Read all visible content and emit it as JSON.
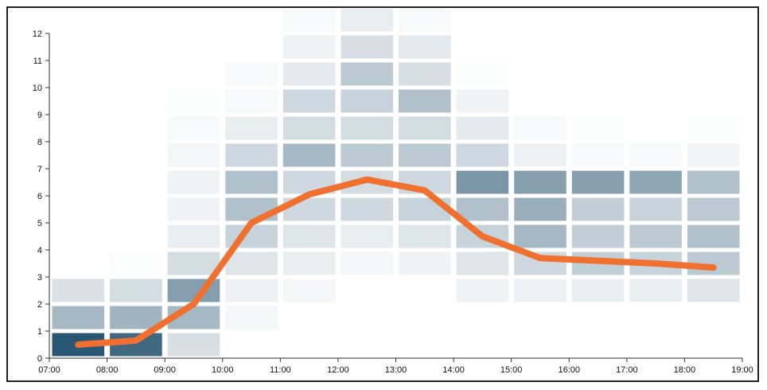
{
  "chart_data": {
    "type": "heatmap",
    "title": "",
    "xlabel": "",
    "ylabel": "",
    "x_tick_labels": [
      "07:00",
      "08:00",
      "09:00",
      "10:00",
      "11:00",
      "12:00",
      "13:00",
      "14:00",
      "15:00",
      "16:00",
      "17:00",
      "18:00",
      "19:00"
    ],
    "y_tick_labels": [
      "0",
      "1",
      "2",
      "3",
      "4",
      "5",
      "6",
      "7",
      "8",
      "9",
      "10",
      "11",
      "12"
    ],
    "xlim": [
      "07:00",
      "19:00"
    ],
    "ylim": [
      0,
      12
    ],
    "cell_color": "#1f4e6b",
    "line_color": "#f07030",
    "heatmap_columns": [
      {
        "start": "07:00",
        "end": "08:00",
        "intensities": [
          0.95,
          0.4,
          0.17,
          0.0,
          0.0,
          0.0,
          0.0,
          0.0,
          0.0,
          0.0,
          0.0,
          0.0
        ]
      },
      {
        "start": "08:00",
        "end": "09:00",
        "intensities": [
          0.85,
          0.42,
          0.2,
          0.02,
          0.0,
          0.0,
          0.0,
          0.0,
          0.0,
          0.0,
          0.0,
          0.0
        ]
      },
      {
        "start": "09:00",
        "end": "10:00",
        "intensities": [
          0.18,
          0.4,
          0.55,
          0.2,
          0.1,
          0.07,
          0.07,
          0.05,
          0.03,
          0.02,
          0.0,
          0.0
        ]
      },
      {
        "start": "10:00",
        "end": "11:00",
        "intensities": [
          0.0,
          0.05,
          0.08,
          0.15,
          0.25,
          0.35,
          0.35,
          0.22,
          0.1,
          0.04,
          0.03,
          0.0
        ]
      },
      {
        "start": "11:00",
        "end": "12:00",
        "intensities": [
          0.0,
          0.0,
          0.05,
          0.1,
          0.15,
          0.22,
          0.22,
          0.4,
          0.2,
          0.22,
          0.12,
          0.07,
          0.03
        ]
      },
      {
        "start": "12:00",
        "end": "13:00",
        "intensities": [
          0.0,
          0.0,
          0.0,
          0.05,
          0.1,
          0.22,
          0.2,
          0.3,
          0.2,
          0.25,
          0.3,
          0.18,
          0.1
        ]
      },
      {
        "start": "13:00",
        "end": "14:00",
        "intensities": [
          0.0,
          0.0,
          0.0,
          0.07,
          0.15,
          0.25,
          0.22,
          0.3,
          0.2,
          0.35,
          0.18,
          0.12,
          0.04
        ]
      },
      {
        "start": "14:00",
        "end": "15:00",
        "intensities": [
          0.0,
          0.0,
          0.07,
          0.15,
          0.25,
          0.35,
          0.6,
          0.22,
          0.12,
          0.07,
          0.02,
          0.0
        ]
      },
      {
        "start": "15:00",
        "end": "16:00",
        "intensities": [
          0.0,
          0.0,
          0.08,
          0.22,
          0.4,
          0.45,
          0.55,
          0.08,
          0.04,
          0.0,
          0.0,
          0.0
        ]
      },
      {
        "start": "16:00",
        "end": "17:00",
        "intensities": [
          0.0,
          0.0,
          0.1,
          0.28,
          0.28,
          0.28,
          0.55,
          0.04,
          0.02,
          0.0,
          0.0,
          0.0
        ]
      },
      {
        "start": "17:00",
        "end": "18:00",
        "intensities": [
          0.0,
          0.0,
          0.1,
          0.25,
          0.3,
          0.25,
          0.5,
          0.04,
          0.0,
          0.0,
          0.0,
          0.0
        ]
      },
      {
        "start": "18:00",
        "end": "19:00",
        "intensities": [
          0.0,
          0.0,
          0.15,
          0.3,
          0.35,
          0.3,
          0.35,
          0.06,
          0.02,
          0.0,
          0.0,
          0.0
        ]
      }
    ],
    "series": [
      {
        "x": [
          "07:30",
          "08:30",
          "09:30",
          "10:30",
          "11:30",
          "12:30",
          "13:30",
          "14:30",
          "15:30",
          "16:30",
          "17:30",
          "18:30"
        ],
        "values": [
          0.5,
          0.65,
          2.0,
          5.0,
          6.05,
          6.6,
          6.2,
          4.5,
          3.7,
          3.6,
          3.5,
          3.35
        ]
      }
    ]
  }
}
